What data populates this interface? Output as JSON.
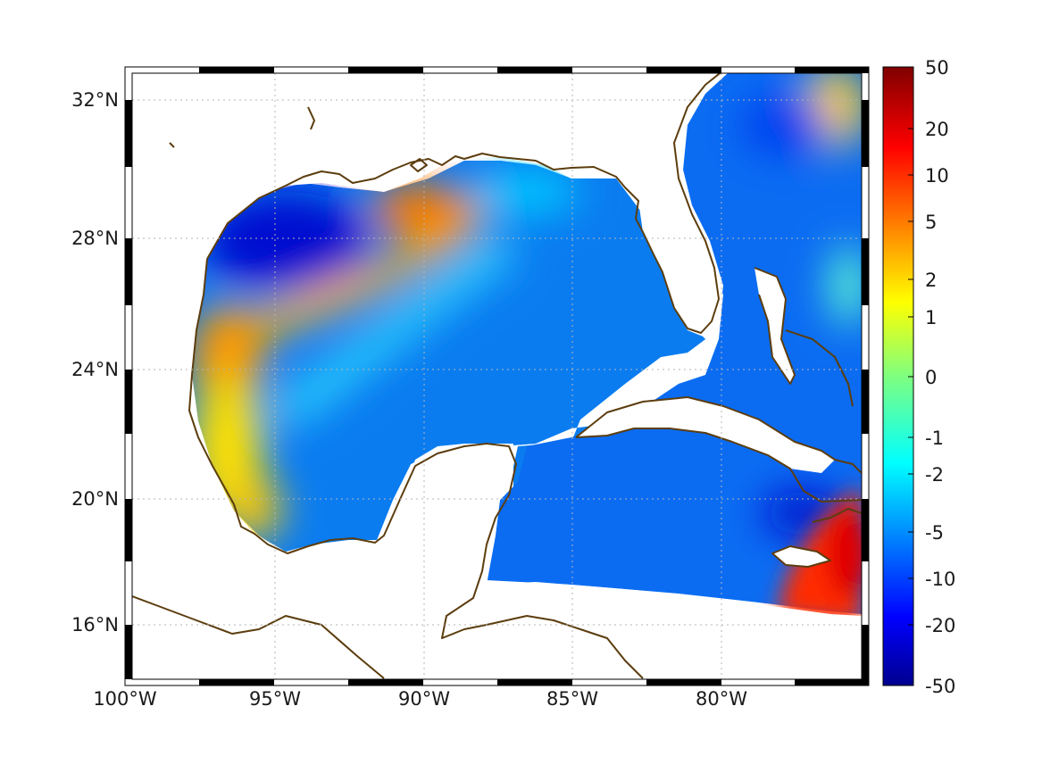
{
  "map": {
    "lon_labels": [
      "100°W",
      "95°W",
      "90°W",
      "85°W",
      "80°W"
    ],
    "lat_labels": [
      "32°N",
      "28°N",
      "24°N",
      "20°N",
      "16°N"
    ],
    "lon_range": [
      -100,
      -75
    ],
    "lat_range": [
      14.3,
      33.0
    ],
    "grid": "dotted",
    "coastline_color": "#5c3d0e",
    "land_color": "#ffffff"
  },
  "colorbar": {
    "tick_labels": [
      "50",
      "20",
      "10",
      "5",
      "2",
      "1",
      "0",
      "-1",
      "-2",
      "-5",
      "-10",
      "-20",
      "-50"
    ],
    "colormap": "jet",
    "placement": "right"
  },
  "chart_data": {
    "type": "heatmap",
    "title": "",
    "xlabel": "",
    "ylabel": "",
    "x_ticks": [
      "100°W",
      "95°W",
      "90°W",
      "85°W",
      "80°W"
    ],
    "y_ticks": [
      "32°N",
      "28°N",
      "24°N",
      "20°N",
      "16°N"
    ],
    "colorbar_ticks": [
      50,
      20,
      10,
      5,
      2,
      1,
      0,
      -1,
      -2,
      -5,
      -10,
      -20,
      -50
    ],
    "regions": [
      {
        "area": "northwestern Gulf shelf",
        "approx_value": -20
      },
      {
        "area": "Louisiana / Mississippi delta",
        "approx_value": 5
      },
      {
        "area": "western Gulf band near 26°N",
        "approx_value": 3
      },
      {
        "area": "western Gulf coast (Mexico)",
        "approx_value": 2
      },
      {
        "area": "central and eastern Gulf",
        "approx_value": -6
      },
      {
        "area": "Caribbean near Jamaica",
        "approx_value": 20
      },
      {
        "area": "Atlantic off Georgia",
        "approx_value": 2
      }
    ]
  }
}
